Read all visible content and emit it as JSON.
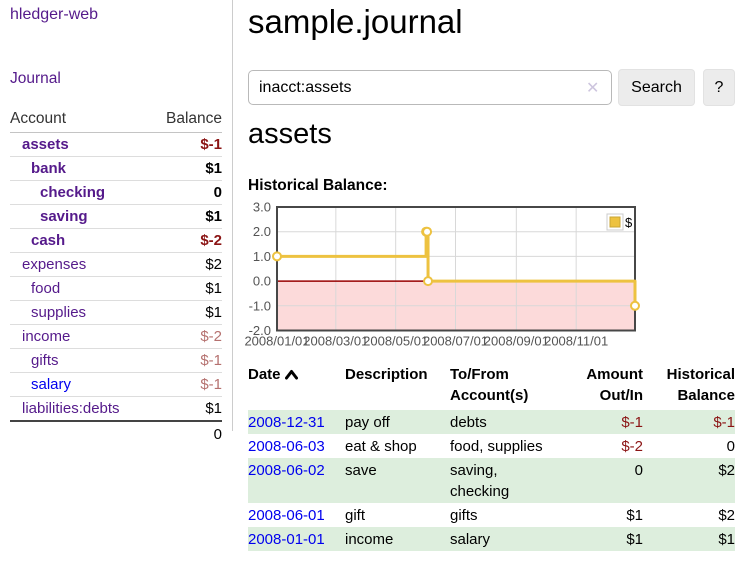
{
  "app": {
    "title": "hledger-web",
    "nav_journal": "Journal"
  },
  "sidebar": {
    "col_account": "Account",
    "col_balance": "Balance",
    "accounts": [
      {
        "name": "assets",
        "balance": "$-1"
      },
      {
        "name": "bank",
        "balance": "$1"
      },
      {
        "name": "checking",
        "balance": "0"
      },
      {
        "name": "saving",
        "balance": "$1"
      },
      {
        "name": "cash",
        "balance": "$-2"
      },
      {
        "name": "expenses",
        "balance": "$2"
      },
      {
        "name": "food",
        "balance": "$1"
      },
      {
        "name": "supplies",
        "balance": "$1"
      },
      {
        "name": "income",
        "balance": "$-2"
      },
      {
        "name": "gifts",
        "balance": "$-1"
      },
      {
        "name": "salary",
        "balance": "$-1"
      },
      {
        "name": "liabilities:debts",
        "balance": "$1"
      }
    ],
    "total": "0"
  },
  "header": {
    "title": "sample.journal"
  },
  "search": {
    "value": "inacct:assets",
    "clear_icon": "✕",
    "button_label": "Search",
    "help_label": "?"
  },
  "account_page": {
    "heading": "assets",
    "chart_title": "Historical Balance:"
  },
  "chart_data": {
    "type": "line",
    "style": "step",
    "title": "Historical Balance:",
    "series": [
      {
        "name": "$",
        "color": "#edc240",
        "points": [
          [
            "2008/01/01",
            1
          ],
          [
            "2008/06/01",
            2
          ],
          [
            "2008/06/02",
            2
          ],
          [
            "2008/06/03",
            0
          ],
          [
            "2008/12/31",
            -1
          ]
        ]
      }
    ],
    "ylim": [
      -2,
      3
    ],
    "yticks": [
      "3.0",
      "2.0",
      "1.0",
      "0.0",
      "-1.0",
      "-2.0"
    ],
    "xticks": [
      "2008/01/01",
      "2008/03/01",
      "2008/05/01",
      "2008/07/01",
      "2008/09/01",
      "2008/11/01"
    ],
    "legend": {
      "label": "$",
      "position": "top-right"
    },
    "grid": true,
    "negative_region_fill": "#fcdada",
    "zero_line_color": "#990000"
  },
  "register": {
    "headers": {
      "date": "Date",
      "description": "Description",
      "accounts": "To/From Account(s)",
      "amount": "Amount Out/In",
      "balance": "Historical Balance"
    },
    "rows": [
      {
        "date": "2008-12-31",
        "description": "pay off",
        "accounts": "debts",
        "amount": "$-1",
        "balance": "$-1"
      },
      {
        "date": "2008-06-03",
        "description": "eat & shop",
        "accounts": "food, supplies",
        "amount": "$-2",
        "balance": "0"
      },
      {
        "date": "2008-06-02",
        "description": "save",
        "accounts": "saving, checking",
        "amount": "0",
        "balance": "$2"
      },
      {
        "date": "2008-06-01",
        "description": "gift",
        "accounts": "gifts",
        "amount": "$1",
        "balance": "$2"
      },
      {
        "date": "2008-01-01",
        "description": "income",
        "accounts": "salary",
        "amount": "$1",
        "balance": "$1"
      }
    ]
  }
}
